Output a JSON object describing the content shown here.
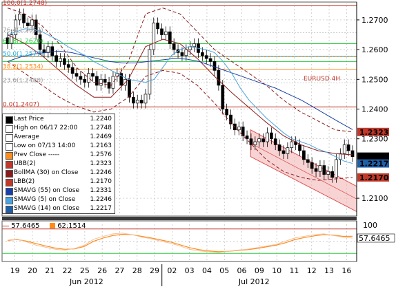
{
  "chart_data": {
    "type": "candlestick",
    "title": "EURUSD 4H",
    "ylim": [
      1.204,
      1.276
    ],
    "yticks": [
      "1.2700",
      "1.2600",
      "1.2500",
      "1.2400",
      "1.2300",
      "1.2100"
    ],
    "x_day_labels": [
      "19",
      "20",
      "21",
      "22",
      "25",
      "26",
      "27",
      "28",
      "29",
      "02",
      "03",
      "04",
      "05",
      "06",
      "09",
      "10",
      "11",
      "12",
      "13",
      "16"
    ],
    "month_labels": [
      "Jun 2012",
      "Jul 2012"
    ],
    "fib_levels": [
      {
        "label": "100.0(1.2748)",
        "value": 1.2748,
        "color": "#c0392b"
      },
      {
        "label": "76.4(1.2657)",
        "value": 1.2657,
        "color": "#999999"
      },
      {
        "label": "61.8(1.2620)",
        "value": 1.262,
        "color": "#2ecc40"
      },
      {
        "label": "50.0(1.2577)",
        "value": 1.2577,
        "color": "#20b0d0"
      },
      {
        "label": "38.2(1.2534)",
        "value": 1.2534,
        "color": "#ff8c1a"
      },
      {
        "label": "23.6(1.2488)",
        "value": 1.2488,
        "color": "#999999"
      },
      {
        "label": "0.0(1.2407)",
        "value": 1.2407,
        "color": "#c0392b"
      }
    ],
    "hlines": [
      1.2748,
      1.262,
      1.2577,
      1.256,
      1.2534,
      1.2407
    ],
    "closes": [
      1.262,
      1.265,
      1.27,
      1.272,
      1.269,
      1.268,
      1.27,
      1.265,
      1.26,
      1.259,
      1.261,
      1.258,
      1.256,
      1.257,
      1.255,
      1.254,
      1.252,
      1.251,
      1.25,
      1.249,
      1.252,
      1.251,
      1.248,
      1.25,
      1.249,
      1.247,
      1.251,
      1.252,
      1.248,
      1.25,
      1.244,
      1.242,
      1.243,
      1.242,
      1.245,
      1.26,
      1.269,
      1.267,
      1.265,
      1.266,
      1.262,
      1.26,
      1.259,
      1.258,
      1.26,
      1.261,
      1.262,
      1.259,
      1.258,
      1.257,
      1.256,
      1.253,
      1.248,
      1.24,
      1.238,
      1.235,
      1.233,
      1.234,
      1.231,
      1.23,
      1.228,
      1.229,
      1.23,
      1.229,
      1.232,
      1.23,
      1.228,
      1.226,
      1.225,
      1.227,
      1.229,
      1.228,
      1.226,
      1.223,
      1.222,
      1.22,
      1.219,
      1.221,
      1.218,
      1.219,
      1.217,
      1.223,
      1.225,
      1.228,
      1.226,
      1.224
    ],
    "sma14": [
      1.265,
      1.266,
      1.267,
      1.2668,
      1.266,
      1.2645,
      1.263,
      1.261,
      1.2595,
      1.258,
      1.256,
      1.2545,
      1.253,
      1.2515,
      1.25,
      1.2495,
      1.249,
      1.25,
      1.254,
      1.258,
      1.26,
      1.261,
      1.2605,
      1.26,
      1.259,
      1.256,
      1.252,
      1.247,
      1.243,
      1.24,
      1.237,
      1.2345,
      1.232,
      1.23,
      1.229,
      1.228,
      1.2265,
      1.2255,
      1.224,
      1.2225,
      1.2217
    ],
    "sma55": [
      1.256,
      1.2575,
      1.2585,
      1.259,
      1.2595,
      1.259,
      1.258,
      1.257,
      1.256,
      1.2555,
      1.2555,
      1.256,
      1.2565,
      1.257,
      1.2568,
      1.256,
      1.2545,
      1.253,
      1.2515,
      1.25,
      1.2485,
      1.247,
      1.245,
      1.243,
      1.2405,
      1.238,
      1.2355,
      1.2331
    ],
    "ubb": [
      1.274,
      1.272,
      1.268,
      1.262,
      1.254,
      1.249,
      1.248,
      1.256,
      1.272,
      1.274,
      1.272,
      1.266,
      1.26,
      1.256,
      1.252,
      1.248,
      1.243,
      1.239,
      1.236,
      1.233,
      1.2323
    ],
    "lbb": [
      1.256,
      1.252,
      1.248,
      1.244,
      1.241,
      1.239,
      1.24,
      1.244,
      1.251,
      1.253,
      1.252,
      1.248,
      1.242,
      1.235,
      1.229,
      1.223,
      1.219,
      1.217,
      1.216,
      1.2165,
      1.217
    ],
    "bollma": [
      1.265,
      1.262,
      1.258,
      1.253,
      1.248,
      1.244,
      1.244,
      1.25,
      1.261,
      1.2635,
      1.262,
      1.257,
      1.251,
      1.2455,
      1.2405,
      1.2355,
      1.231,
      1.228,
      1.226,
      1.225,
      1.2246
    ],
    "channel": {
      "label": "regression channel"
    },
    "subpanel": {
      "ylim": [
        0,
        100
      ],
      "ytick": "100",
      "k_values": [
        50,
        55,
        48,
        40,
        35,
        30,
        28,
        32,
        40,
        55,
        62,
        68,
        70,
        66,
        60,
        56,
        50,
        45,
        38,
        30,
        26,
        24,
        22,
        25,
        28,
        30,
        34,
        38,
        42,
        50,
        58,
        62,
        66,
        68,
        64,
        60,
        57.6465
      ],
      "d_values": [
        52,
        54,
        50,
        44,
        38,
        33,
        30,
        31,
        37,
        50,
        58,
        64,
        67,
        66,
        62,
        58,
        53,
        48,
        41,
        34,
        29,
        26,
        24,
        25,
        27,
        29,
        32,
        36,
        40,
        46,
        54,
        59,
        63,
        66,
        65,
        62,
        62.1514
      ]
    },
    "price_tags": [
      {
        "value": "1.2323",
        "bg": "#c0392b",
        "fg": "#ffffff"
      },
      {
        "value": "1.2240",
        "bg": "#000000",
        "fg": "#ffffff"
      },
      {
        "value": "1.2217",
        "bg": "#1f5fa8",
        "fg": "#ffffff"
      },
      {
        "value": "1.2170",
        "bg": "#c0392b",
        "fg": "#ffffff"
      }
    ],
    "sub_tag": "57.6465"
  },
  "legend": {
    "rows": [
      {
        "name": "Last Price",
        "value": "1.2240",
        "color": "#000000"
      },
      {
        "name": "High on 06/17 22:00",
        "value": "1.2748",
        "color": "#ffffff"
      },
      {
        "name": "Average",
        "value": "1.2469",
        "color": "#ffffff"
      },
      {
        "name": "Low on 07/13 14:00",
        "value": "1.2163",
        "color": "#ffffff"
      },
      {
        "name": "Prev Close -----",
        "value": "1.2576",
        "color": "#ff8c1a"
      },
      {
        "name": "UBB(2)",
        "value": "1.2323",
        "color": "#c0392b"
      },
      {
        "name": "BollMA (30) on Close",
        "value": "1.2246",
        "color": "#8b1a1a"
      },
      {
        "name": "LBB(2)",
        "value": "1.2170",
        "color": "#c0392b"
      },
      {
        "name": "SMAVG (55) on Close",
        "value": "1.2331",
        "color": "#1a3fa8"
      },
      {
        "name": "SMAVG (5) on Close",
        "value": "1.2246",
        "color": "#4aa3df"
      },
      {
        "name": "SMAVG (14) on Close",
        "value": "1.2217",
        "color": "#1f5fa8"
      }
    ]
  },
  "sub_legend": {
    "k": "57.6465",
    "d": "62.1514"
  }
}
